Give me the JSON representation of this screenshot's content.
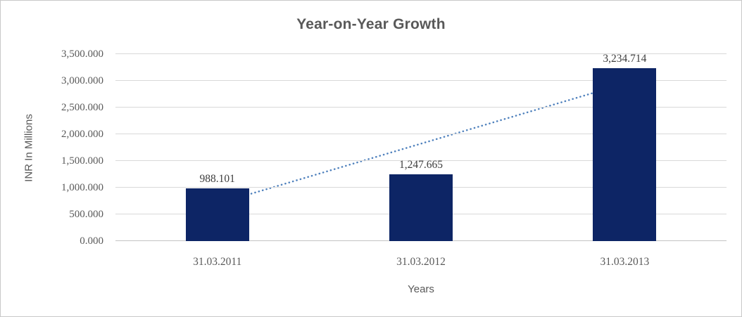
{
  "chart_data": {
    "type": "bar",
    "title": "Year-on-Year Growth",
    "categories": [
      "31.03.2011",
      "31.03.2012",
      "31.03.2013"
    ],
    "values": [
      988.101,
      1247.665,
      3234.714
    ],
    "data_labels": [
      "988.101",
      "1,247.665",
      "3,234.714"
    ],
    "xlabel": "Years",
    "ylabel": "INR In Millions",
    "ylim": [
      0,
      3500
    ],
    "ytick_step": 500,
    "ytick_labels": [
      "0.000",
      "500.000",
      "1,000.000",
      "1,500.000",
      "2,000.000",
      "2,500.000",
      "3,000.000",
      "3,500.000"
    ],
    "grid": true,
    "legend_position": "none",
    "bar_color": "#0d2565",
    "trendline": {
      "type": "linear",
      "style": "dotted",
      "color": "#4f81bd"
    },
    "colors": {
      "title_text": "#595959",
      "axis_text": "#595959",
      "data_label_text": "#3d3d3d",
      "gridline": "#d9d9d9",
      "axis_line": "#c3c3c3",
      "chart_border": "#c9c9c9",
      "background": "#ffffff"
    }
  }
}
